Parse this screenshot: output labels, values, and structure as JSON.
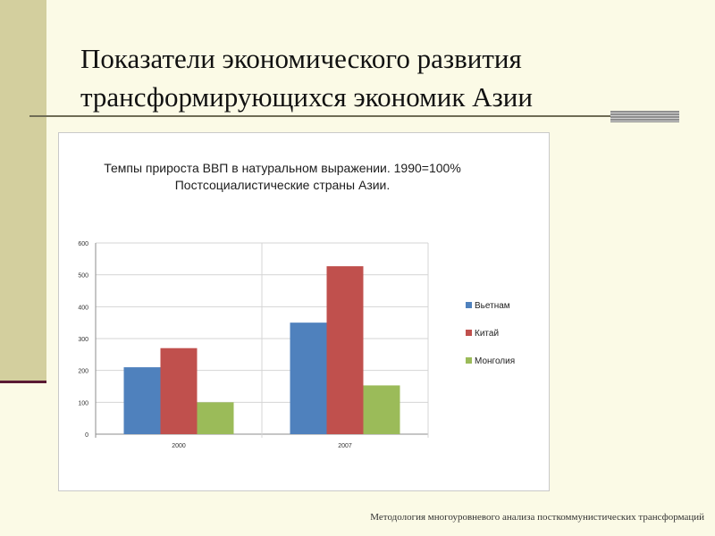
{
  "slide": {
    "title_line1": "Показатели экономического развития",
    "title_line2": "трансформирующихся экономик Азии",
    "footer": "Методология многоуровневого анализа посткоммунистических трансформаций"
  },
  "chart_data": {
    "type": "bar",
    "title": "Темпы прироста ВВП в натуральном выражении. 1990=100%",
    "subtitle": "Постсоциалистические страны Азии.",
    "categories": [
      "2000",
      "2007"
    ],
    "series": [
      {
        "name": "Вьетнам",
        "values": [
          210,
          350
        ],
        "color": "#4f81bd"
      },
      {
        "name": "Китай",
        "values": [
          270,
          527
        ],
        "color": "#c0504d"
      },
      {
        "name": "Монголия",
        "values": [
          100,
          153
        ],
        "color": "#9bbb59"
      }
    ],
    "ylim": [
      0,
      600
    ],
    "yticks": [
      "0",
      "100",
      "200",
      "300",
      "400",
      "500",
      "600"
    ],
    "grid": true,
    "legend_position": "right"
  }
}
